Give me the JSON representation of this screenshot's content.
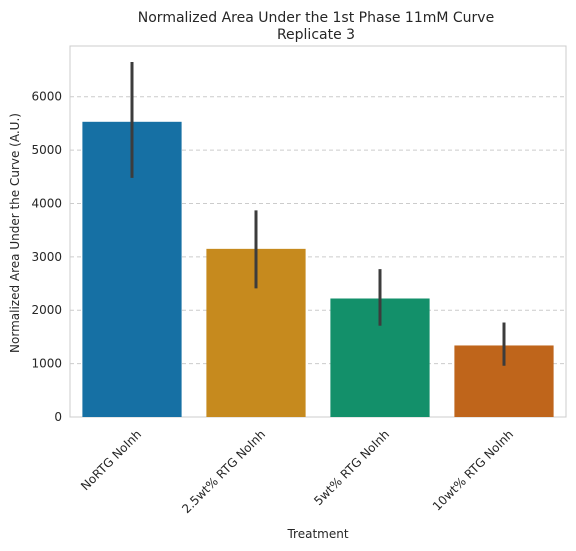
{
  "chart_data": {
    "type": "bar",
    "title": "Normalized Area Under the 1st Phase 11mM Curve",
    "subtitle": "Replicate 3",
    "xlabel": "Treatment",
    "ylabel": "Normalized Area Under the Curve (A.U.)",
    "categories": [
      "NoRTG NoInh",
      "2.5wt% RTG NoInh",
      "5wt% RTG NoInh",
      "10wt% RTG NoInh"
    ],
    "values": [
      5530,
      3150,
      2220,
      1340
    ],
    "error_low": [
      4480,
      2410,
      1710,
      960
    ],
    "error_high": [
      6650,
      3870,
      2770,
      1770
    ],
    "colors": [
      "#1670A4",
      "#C68A1E",
      "#13906A",
      "#BF651B"
    ],
    "error_color": "#3C3C3C",
    "ylim": [
      0,
      6950
    ],
    "yticks": [
      0,
      1000,
      2000,
      3000,
      4000,
      5000,
      6000
    ],
    "grid": "y-dashed"
  }
}
